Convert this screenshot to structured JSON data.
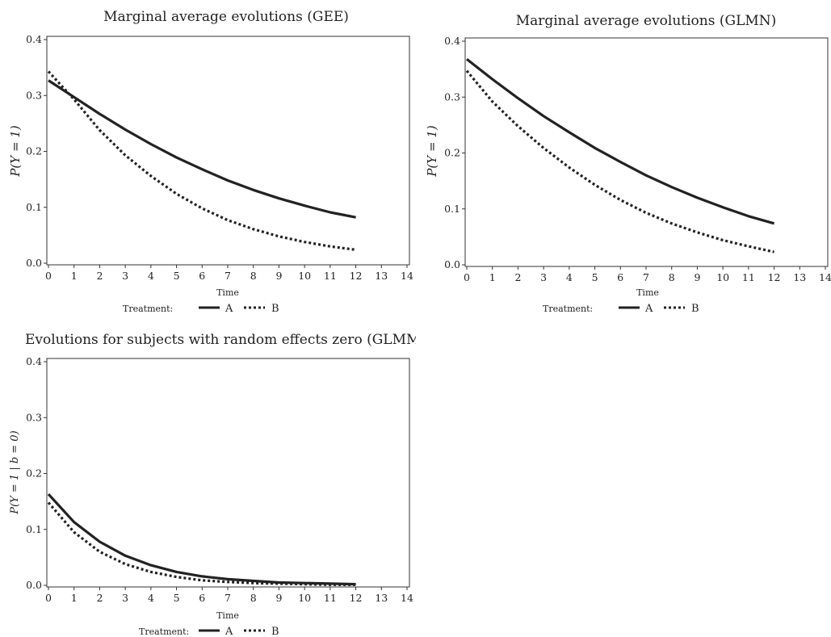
{
  "chart_data": [
    {
      "type": "line",
      "title": "Marginal average evolutions (GEE)",
      "xlabel": "Time",
      "ylabel": "P(Y = 1)",
      "xlim": [
        0,
        14
      ],
      "ylim": [
        0,
        0.4
      ],
      "xticks": [
        "0",
        "1",
        "2",
        "3",
        "4",
        "5",
        "6",
        "7",
        "8",
        "9",
        "10",
        "11",
        "12",
        "13",
        "14"
      ],
      "yticks": [
        "0.0",
        "0.1",
        "0.2",
        "0.3",
        "0.4"
      ],
      "legend": {
        "title": "Treatment:",
        "position": "bottom",
        "entries": [
          "A",
          "B"
        ]
      },
      "series": [
        {
          "name": "A",
          "style": "solid",
          "x": [
            0,
            1,
            2,
            3,
            4,
            5,
            6,
            7,
            8,
            9,
            10,
            11,
            12
          ],
          "values": [
            0.327,
            0.297,
            0.267,
            0.239,
            0.213,
            0.189,
            0.168,
            0.148,
            0.131,
            0.116,
            0.103,
            0.091,
            0.082
          ]
        },
        {
          "name": "B",
          "style": "dotted",
          "x": [
            0,
            1,
            2,
            3,
            4,
            5,
            6,
            7,
            8,
            9,
            10,
            11,
            12
          ],
          "values": [
            0.343,
            0.293,
            0.238,
            0.193,
            0.156,
            0.124,
            0.098,
            0.077,
            0.061,
            0.048,
            0.038,
            0.03,
            0.024
          ]
        }
      ]
    },
    {
      "type": "line",
      "title": "Marginal average evolutions (GLMN)",
      "xlabel": "Time",
      "ylabel": "P(Y = 1)",
      "xlim": [
        0,
        14
      ],
      "ylim": [
        0,
        0.4
      ],
      "xticks": [
        "0",
        "1",
        "2",
        "3",
        "4",
        "5",
        "6",
        "7",
        "8",
        "9",
        "10",
        "11",
        "12",
        "13",
        "14"
      ],
      "yticks": [
        "0.0",
        "0.1",
        "0.2",
        "0.3",
        "0.4"
      ],
      "legend": {
        "title": "Treatment:",
        "position": "bottom",
        "entries": [
          "A",
          "B"
        ]
      },
      "series": [
        {
          "name": "A",
          "style": "solid",
          "x": [
            0,
            1,
            2,
            3,
            4,
            5,
            6,
            7,
            8,
            9,
            10,
            11,
            12
          ],
          "values": [
            0.368,
            0.332,
            0.298,
            0.266,
            0.237,
            0.209,
            0.184,
            0.16,
            0.139,
            0.12,
            0.103,
            0.087,
            0.074
          ]
        },
        {
          "name": "B",
          "style": "dotted",
          "x": [
            0,
            1,
            2,
            3,
            4,
            5,
            6,
            7,
            8,
            9,
            10,
            11,
            12
          ],
          "values": [
            0.347,
            0.292,
            0.248,
            0.209,
            0.174,
            0.143,
            0.116,
            0.093,
            0.074,
            0.058,
            0.044,
            0.033,
            0.023
          ]
        }
      ]
    },
    {
      "type": "line",
      "title": "Evolutions for subjects with random effects zero (GLMM)",
      "xlabel": "Time",
      "ylabel": "P(Y = 1 | b = 0)",
      "xlim": [
        0,
        14
      ],
      "ylim": [
        0,
        0.4
      ],
      "xticks": [
        "0",
        "1",
        "2",
        "3",
        "4",
        "5",
        "6",
        "7",
        "8",
        "9",
        "10",
        "11",
        "12",
        "13",
        "14"
      ],
      "yticks": [
        "0.0",
        "0.1",
        "0.2",
        "0.3",
        "0.4"
      ],
      "legend": {
        "title": "Treatment:",
        "position": "bottom",
        "entries": [
          "A",
          "B"
        ]
      },
      "series": [
        {
          "name": "A",
          "style": "solid",
          "x": [
            0,
            1,
            2,
            3,
            4,
            5,
            6,
            7,
            8,
            9,
            10,
            11,
            12
          ],
          "values": [
            0.163,
            0.113,
            0.078,
            0.053,
            0.036,
            0.024,
            0.016,
            0.011,
            0.008,
            0.005,
            0.004,
            0.003,
            0.002
          ]
        },
        {
          "name": "B",
          "style": "dotted",
          "x": [
            0,
            1,
            2,
            3,
            4,
            5,
            6,
            7,
            8,
            9,
            10,
            11,
            12
          ],
          "values": [
            0.148,
            0.095,
            0.06,
            0.038,
            0.024,
            0.015,
            0.009,
            0.006,
            0.004,
            0.003,
            0.002,
            0.001,
            0.001
          ]
        }
      ]
    }
  ]
}
